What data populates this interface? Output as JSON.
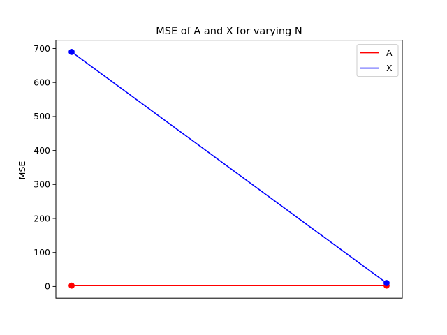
{
  "chart_data": {
    "type": "line",
    "title": "MSE of A and X for varying N",
    "xlabel": "",
    "ylabel": "MSE",
    "x": [
      0,
      1
    ],
    "xlim": [
      -0.05,
      1.05
    ],
    "ylim": [
      -34.5,
      724.5
    ],
    "yticks": [
      0,
      100,
      200,
      300,
      400,
      500,
      600,
      700
    ],
    "ytick_labels": [
      "0",
      "100",
      "200",
      "300",
      "400",
      "500",
      "600",
      "700"
    ],
    "xticks_visible": false,
    "grid": false,
    "legend_position": "top-right",
    "series": [
      {
        "name": "A",
        "color": "#ff0000",
        "values": [
          2.5,
          2.5
        ],
        "marker": "circle"
      },
      {
        "name": "X",
        "color": "#0000ff",
        "values": [
          690,
          10
        ],
        "marker": "circle"
      }
    ]
  }
}
